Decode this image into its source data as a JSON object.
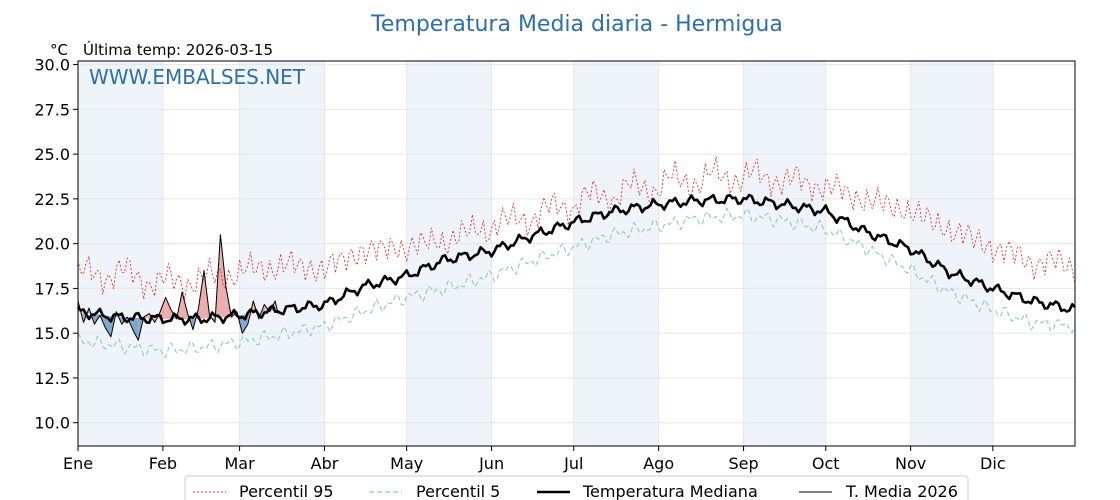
{
  "chart_data": {
    "type": "line",
    "title": "Temperatura Media diaria - Hermigua",
    "unit_label": "°C",
    "last_temp_label": "Última temp: 2026-03-15",
    "watermark": "WWW.EMBALSES.NET",
    "ylim": [
      8.7,
      30.2
    ],
    "y_ticks": [
      "10.0",
      "12.5",
      "15.0",
      "17.5",
      "20.0",
      "22.5",
      "25.0",
      "27.5",
      "30.0"
    ],
    "months": [
      "Ene",
      "Feb",
      "Mar",
      "Abr",
      "May",
      "Jun",
      "Jul",
      "Ago",
      "Sep",
      "Oct",
      "Nov",
      "Dic"
    ],
    "x_unit": "day of year",
    "x_range": [
      1,
      365
    ],
    "grid": true,
    "legend_position": "bottom",
    "series": [
      {
        "name": "Percentil 95",
        "color": "#e8312a",
        "style": "dotted",
        "x": [
          1,
          15,
          32,
          46,
          60,
          75,
          91,
          105,
          121,
          135,
          152,
          166,
          182,
          196,
          213,
          227,
          244,
          258,
          274,
          288,
          305,
          319,
          335,
          349,
          365
        ],
        "values": [
          18.2,
          18.4,
          17.8,
          18.0,
          18.4,
          18.8,
          18.6,
          19.6,
          19.8,
          20.2,
          21.0,
          21.5,
          22.3,
          22.8,
          23.3,
          23.6,
          23.8,
          23.6,
          23.2,
          22.5,
          21.8,
          20.8,
          19.8,
          19.0,
          18.8
        ]
      },
      {
        "name": "Percentil 5",
        "color": "#8ec5d6",
        "style": "dashed",
        "x": [
          1,
          15,
          32,
          46,
          60,
          75,
          91,
          105,
          121,
          135,
          152,
          166,
          182,
          196,
          213,
          227,
          244,
          258,
          274,
          288,
          305,
          319,
          335,
          349,
          365
        ],
        "values": [
          14.6,
          14.3,
          14.0,
          14.2,
          14.5,
          14.9,
          15.4,
          16.2,
          17.0,
          17.5,
          18.2,
          19.0,
          19.8,
          20.5,
          21.0,
          21.4,
          21.6,
          21.3,
          20.8,
          19.8,
          18.5,
          17.3,
          16.3,
          15.6,
          15.4
        ]
      },
      {
        "name": "Temperatura Mediana",
        "color": "#000000",
        "style": "solid-thick",
        "x": [
          1,
          15,
          32,
          46,
          60,
          75,
          91,
          105,
          121,
          135,
          152,
          166,
          182,
          196,
          213,
          227,
          244,
          258,
          274,
          288,
          305,
          319,
          335,
          349,
          365
        ],
        "values": [
          16.2,
          15.9,
          15.8,
          15.8,
          16.0,
          16.3,
          16.6,
          17.6,
          18.2,
          19.1,
          19.6,
          20.4,
          21.2,
          21.8,
          22.2,
          22.4,
          22.5,
          22.2,
          21.8,
          20.7,
          19.7,
          18.4,
          17.5,
          16.8,
          16.3
        ]
      },
      {
        "name": "T. Media 2026",
        "color": "#000000",
        "style": "solid-thin",
        "x": [
          1,
          3,
          5,
          7,
          9,
          11,
          13,
          15,
          17,
          19,
          21,
          23,
          25,
          27,
          29,
          31,
          33,
          35,
          37,
          39,
          41,
          43,
          45,
          47,
          49,
          51,
          53,
          55,
          57,
          59,
          61,
          63,
          65,
          67,
          69,
          71,
          73,
          74
        ],
        "values": [
          16.8,
          15.6,
          16.4,
          15.5,
          16.0,
          15.3,
          14.8,
          16.2,
          15.5,
          15.9,
          15.2,
          14.6,
          15.9,
          16.1,
          15.6,
          16.2,
          17.0,
          16.3,
          15.8,
          17.3,
          16.1,
          15.2,
          16.4,
          18.5,
          16.0,
          15.6,
          20.5,
          17.6,
          15.9,
          16.2,
          15.0,
          15.5,
          16.8,
          15.8,
          16.6,
          16.2,
          16.8,
          16.1
        ]
      }
    ]
  }
}
